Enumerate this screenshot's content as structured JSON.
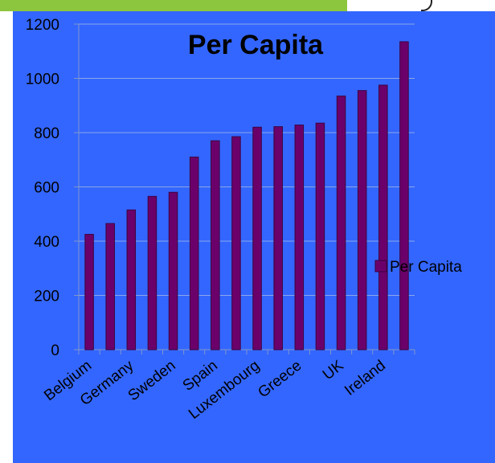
{
  "colors": {
    "background": "#3366ff",
    "bar_fill": "#6b006b",
    "bar_edge": "#3d003d",
    "gridline": "#8aa6e8",
    "axis": "#7f96c8",
    "top_band": "#8cc63e"
  },
  "legend": {
    "label": "Per Capita",
    "placement": "right"
  },
  "chart_data": {
    "type": "bar",
    "title": "Per Capita",
    "xlabel": "",
    "ylabel": "",
    "ylim": [
      0,
      1200
    ],
    "yticks": [
      0,
      200,
      400,
      600,
      800,
      1000,
      1200
    ],
    "grid": true,
    "categories": [
      "Belgium",
      "",
      "Germany",
      "",
      "Sweden",
      "",
      "Spain",
      "",
      "Luxembourg",
      "",
      "Greece",
      "",
      "UK",
      "",
      "Ireland",
      ""
    ],
    "visible_category_labels": [
      "Belgium",
      "Germany",
      "Sweden",
      "Spain",
      "Luxembourg",
      "Greece",
      "UK",
      "Ireland"
    ],
    "series": [
      {
        "name": "Per Capita",
        "values": [
          425,
          465,
          515,
          565,
          580,
          710,
          770,
          785,
          820,
          822,
          828,
          835,
          935,
          955,
          975,
          1135
        ]
      }
    ]
  }
}
